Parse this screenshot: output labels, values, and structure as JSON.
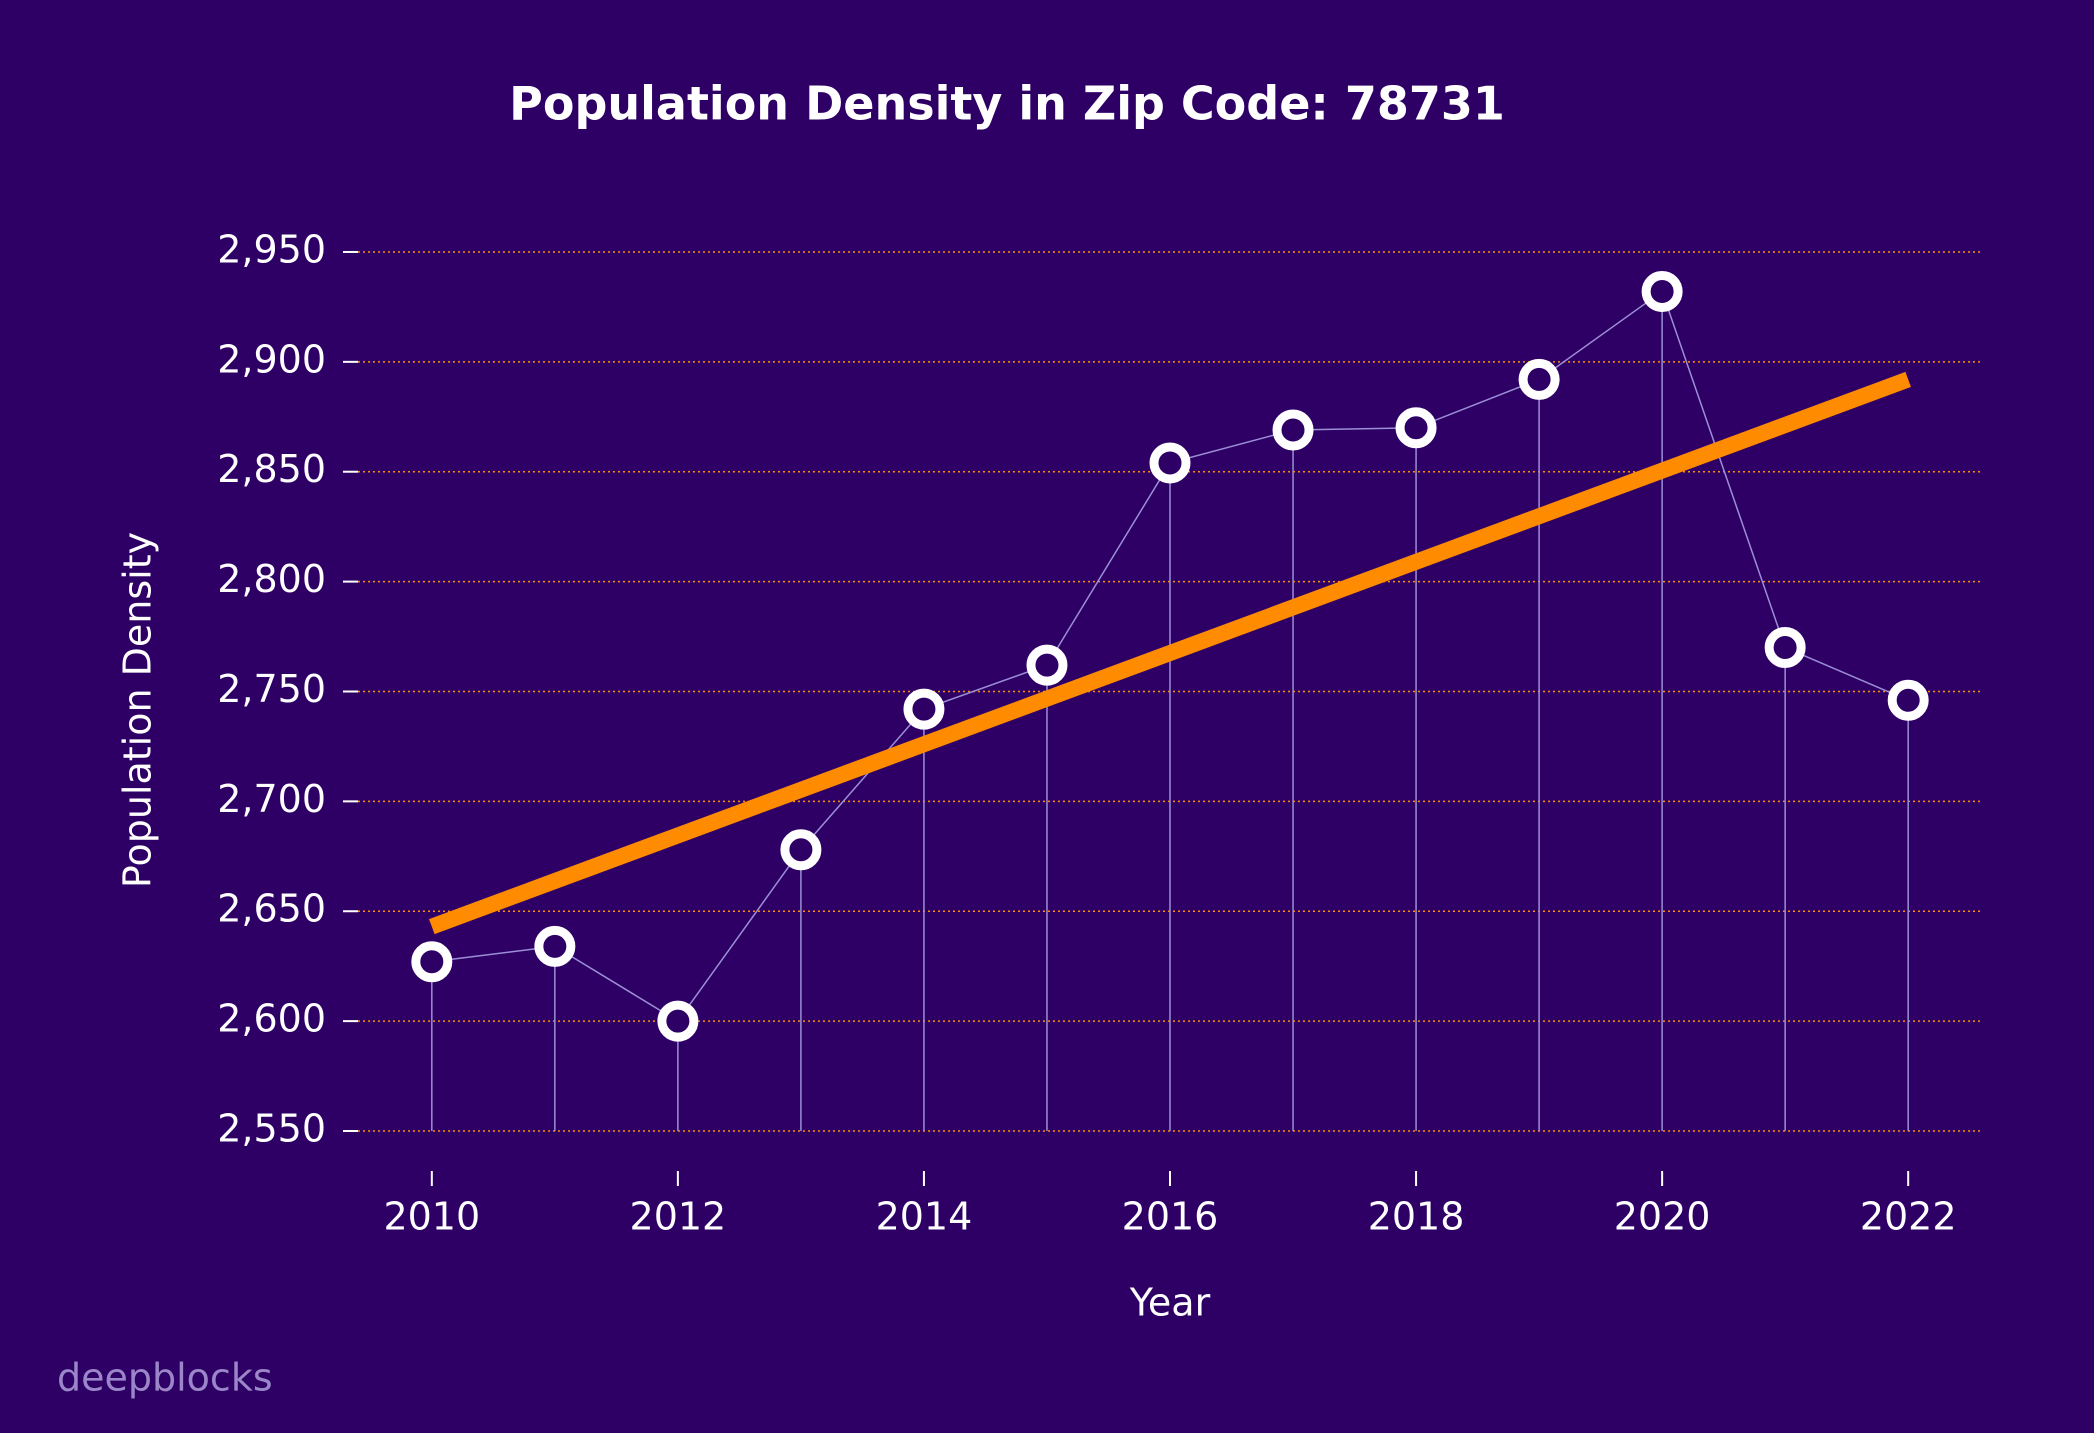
{
  "chart_data": {
    "type": "stem",
    "title": "Population Density in Zip Code: 78731",
    "x_label": "Year",
    "y_label": "Population Density",
    "watermark": "deepblocks",
    "x": [
      2010,
      2011,
      2012,
      2013,
      2014,
      2015,
      2016,
      2017,
      2018,
      2019,
      2020,
      2021,
      2022
    ],
    "series": [
      {
        "color": "#ffffff",
        "values": [
          2627,
          2634,
          2600,
          2678,
          2742,
          2762,
          2854,
          2869,
          2870,
          2892,
          2932,
          2770,
          2746
        ]
      }
    ],
    "trend": {
      "color": "#ff8c00",
      "x": [
        2010,
        2022
      ],
      "values": [
        2643,
        2892
      ]
    },
    "xlim": [
      2009.4,
      2022.6
    ],
    "xticks": [
      2010,
      2012,
      2014,
      2016,
      2018,
      2020,
      2022
    ],
    "ylim": [
      2550,
      2960
    ],
    "yticks": [
      {
        "value": 2550,
        "label": "2,550"
      },
      {
        "value": 2600,
        "label": "2,600"
      },
      {
        "value": 2650,
        "label": "2,650"
      },
      {
        "value": 2700,
        "label": "2,700"
      },
      {
        "value": 2750,
        "label": "2,750"
      },
      {
        "value": 2800,
        "label": "2,800"
      },
      {
        "value": 2850,
        "label": "2,850"
      },
      {
        "value": 2900,
        "label": "2,900"
      },
      {
        "value": 2950,
        "label": "2,950"
      }
    ],
    "grid": true,
    "grid_color": "#ff8c00",
    "background": "#2e0066"
  }
}
